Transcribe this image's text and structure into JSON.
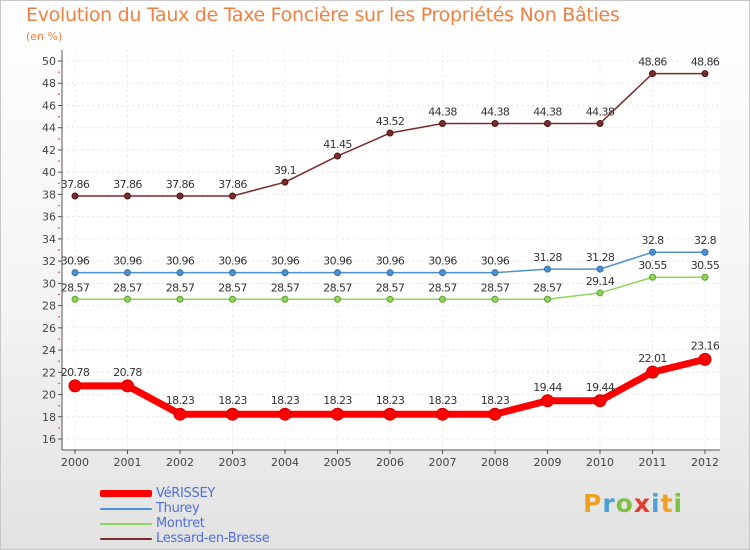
{
  "chart_data": {
    "type": "line",
    "title": "Evolution du Taux de Taxe Foncière sur les Propriétés Non Bâties",
    "subtitle": "(en %)",
    "xlabel": "",
    "ylabel": "(en %)",
    "x": [
      "2000",
      "2001",
      "2002",
      "2003",
      "2004",
      "2005",
      "2006",
      "2007",
      "2008",
      "2009",
      "2010",
      "2011",
      "2012"
    ],
    "ylim": [
      16,
      50
    ],
    "yticks": [
      "16",
      "18",
      "20",
      "22",
      "24",
      "26",
      "28",
      "30",
      "32",
      "34",
      "36",
      "38",
      "40",
      "42",
      "44",
      "46",
      "48",
      "50"
    ],
    "legend_position": "bottom-left",
    "series": [
      {
        "name": "VéRISSEY",
        "color": "#ff0000",
        "values": [
          20.78,
          20.78,
          18.23,
          18.23,
          18.23,
          18.23,
          18.23,
          18.23,
          18.23,
          19.44,
          19.44,
          22.01,
          23.16
        ],
        "labels": [
          "20.78",
          "20.78",
          "18.23",
          "18.23",
          "18.23",
          "18.23",
          "18.23",
          "18.23",
          "18.23",
          "19.44",
          "19.44",
          "22.01",
          "23.16"
        ]
      },
      {
        "name": "Thurey",
        "color": "#4e91d0",
        "values": [
          30.96,
          30.96,
          30.96,
          30.96,
          30.96,
          30.96,
          30.96,
          30.96,
          30.96,
          31.28,
          31.28,
          32.8,
          32.8
        ],
        "labels": [
          "30.96",
          "30.96",
          "30.96",
          "30.96",
          "30.96",
          "30.96",
          "30.96",
          "30.96",
          "30.96",
          "31.28",
          "31.28",
          "32.8",
          "32.8"
        ]
      },
      {
        "name": "Montret",
        "color": "#8ed65a",
        "values": [
          28.57,
          28.57,
          28.57,
          28.57,
          28.57,
          28.57,
          28.57,
          28.57,
          28.57,
          28.57,
          29.14,
          30.55,
          30.55
        ],
        "labels": [
          "28.57",
          "28.57",
          "28.57",
          "28.57",
          "28.57",
          "28.57",
          "28.57",
          "28.57",
          "28.57",
          "28.57",
          "29.14",
          "30.55",
          "30.55"
        ]
      },
      {
        "name": "Lessard-en-Bresse",
        "color": "#7b2b2b",
        "values": [
          37.86,
          37.86,
          37.86,
          37.86,
          39.1,
          41.45,
          43.52,
          44.38,
          44.38,
          44.38,
          44.38,
          48.86,
          48.86
        ],
        "labels": [
          "37.86",
          "37.86",
          "37.86",
          "37.86",
          "39.1",
          "41.45",
          "43.52",
          "44.38",
          "44.38",
          "44.38",
          "44.38",
          "48.86",
          "48.86"
        ]
      }
    ]
  },
  "logo": {
    "letters": [
      "P",
      "r",
      "o",
      "x",
      "i",
      "t",
      "i"
    ]
  }
}
